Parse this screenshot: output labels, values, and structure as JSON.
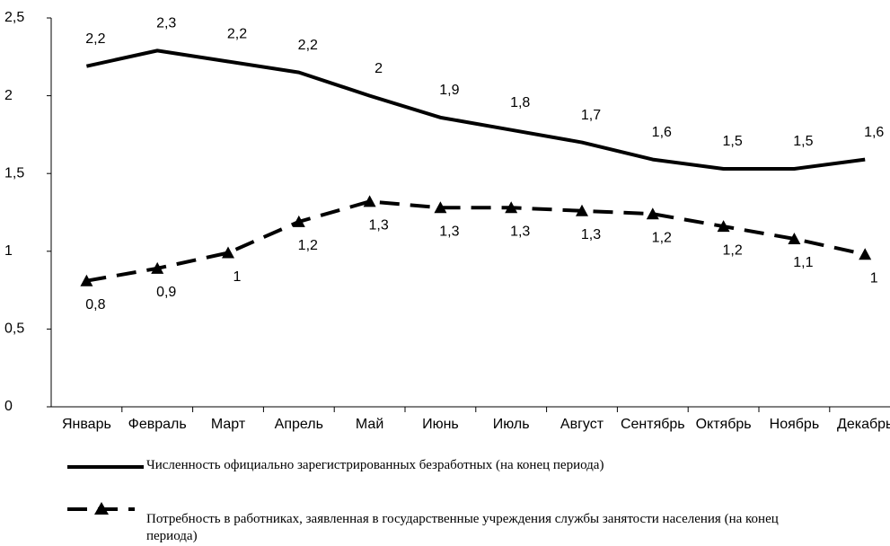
{
  "chart_data": {
    "type": "line",
    "categories": [
      "Январь",
      "Февраль",
      "Март",
      "Апрель",
      "Май",
      "Июнь",
      "Июль",
      "Август",
      "Сентябрь",
      "Октябрь",
      "Ноябрь",
      "Декабрь"
    ],
    "series": [
      {
        "name": "Численность официально зарегистрированных безработных (на конец периода)",
        "color": "#000000",
        "style": "solid",
        "marker": "none",
        "label_side": "above",
        "values": [
          2.19,
          2.29,
          2.22,
          2.15,
          2.0,
          1.86,
          1.78,
          1.7,
          1.59,
          1.53,
          1.53,
          1.59
        ],
        "value_labels": [
          "2,2",
          "2,3",
          "2,2",
          "2,2",
          "2",
          "1,9",
          "1,8",
          "1,7",
          "1,6",
          "1,5",
          "1,5",
          "1,6"
        ]
      },
      {
        "name": "Потребность в работниках, заявленная в государственные учреждения службы занятости населения (на конец периода)",
        "color": "#000000",
        "style": "dashed",
        "marker": "triangle",
        "label_side": "below",
        "values": [
          0.81,
          0.89,
          0.99,
          1.19,
          1.32,
          1.28,
          1.28,
          1.26,
          1.24,
          1.16,
          1.08,
          0.98
        ],
        "value_labels": [
          "0,8",
          "0,9",
          "1",
          "1,2",
          "1,3",
          "1,3",
          "1,3",
          "1,3",
          "1,2",
          "1,2",
          "1,1",
          "1"
        ]
      }
    ],
    "ylim": [
      0,
      2.5
    ],
    "yticks": [
      0,
      {
        "value": 0.5,
        "label": "0,5"
      },
      1,
      {
        "value": 1.5,
        "label": "1,5"
      },
      2,
      {
        "value": 2.5,
        "label": "2,5"
      }
    ],
    "grid": false
  }
}
